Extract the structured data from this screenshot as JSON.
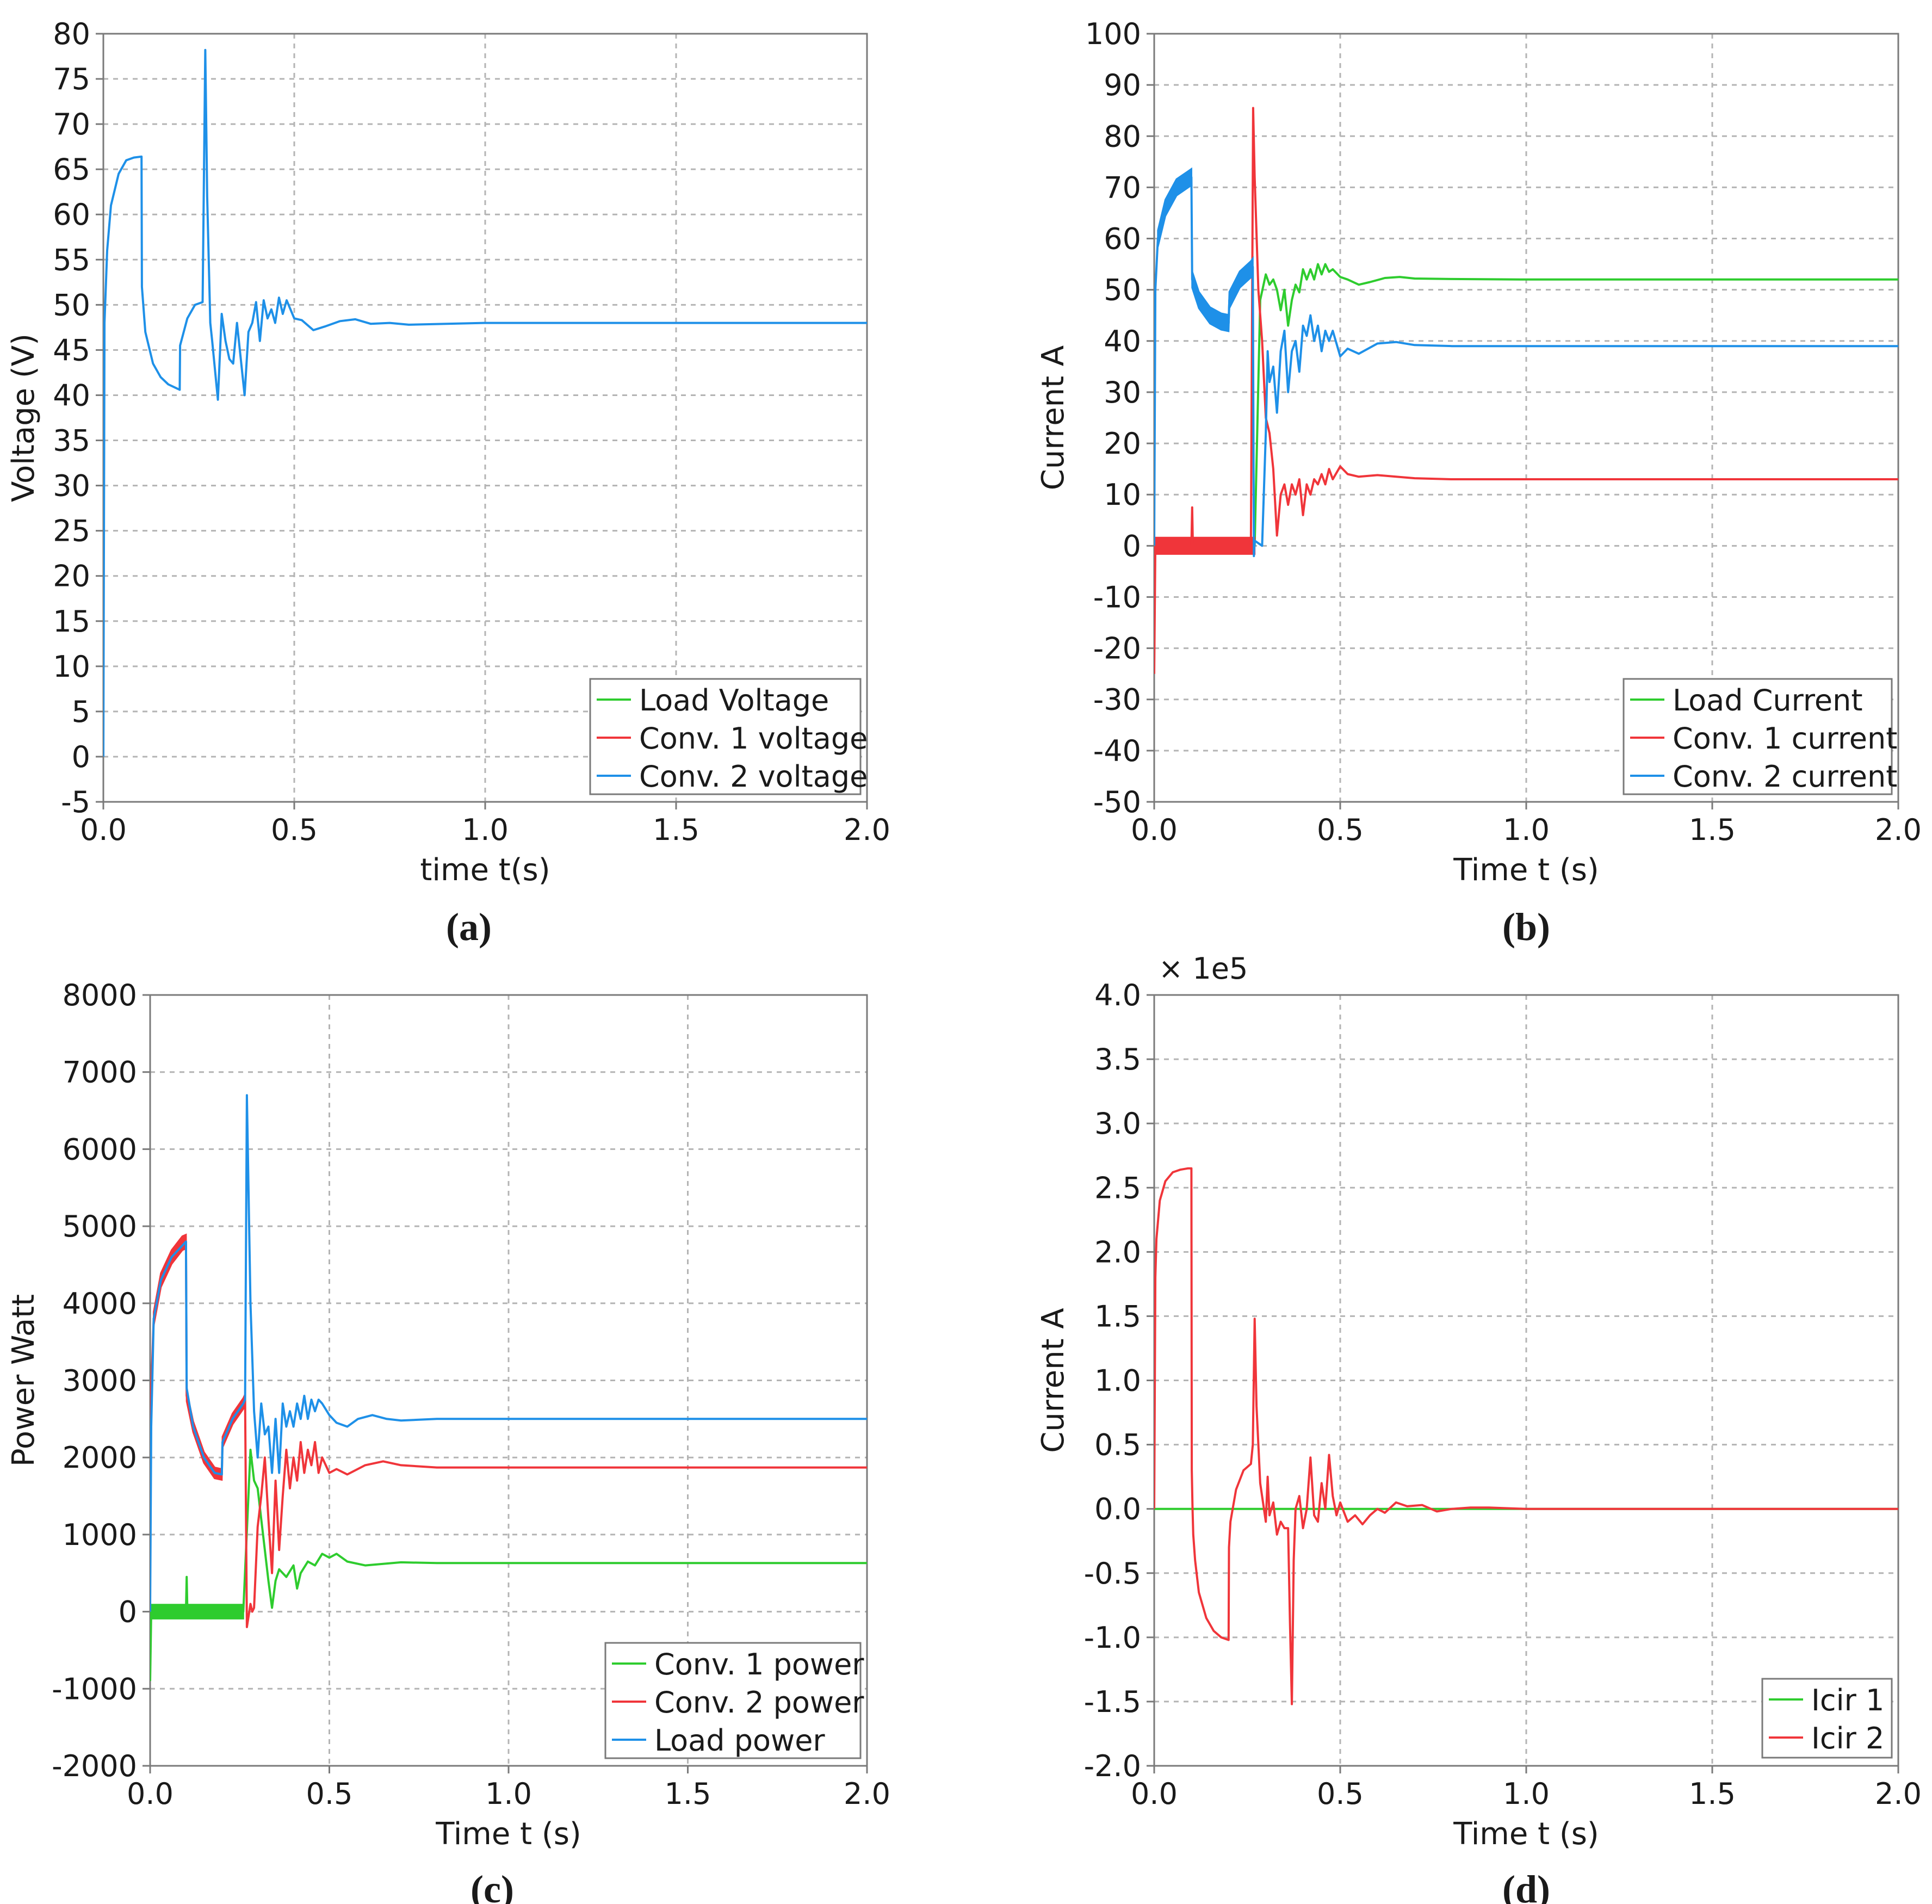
{
  "colors": {
    "green": "#2ecc2e",
    "red": "#f0353a",
    "blue": "#1e90e8",
    "grid": "#b4b4b4",
    "frame": "#7a7a7a"
  },
  "chart_data": [
    {
      "panel": "(a)",
      "type": "line",
      "xlabel": "time t(s)",
      "ylabel": "Voltage (V)",
      "xlim": [
        0,
        2.0
      ],
      "ylim": [
        -5,
        80
      ],
      "xticks": [
        0.0,
        0.5,
        1.0,
        1.5,
        2.0
      ],
      "xtick_labels": [
        "0.0",
        "0.5",
        "1.0",
        "1.5",
        "2.0"
      ],
      "yticks": [
        -5,
        0,
        5,
        10,
        15,
        20,
        25,
        30,
        35,
        40,
        45,
        50,
        55,
        60,
        65,
        70,
        75,
        80
      ],
      "ytick_labels": [
        "-5",
        "0",
        "5",
        "10",
        "15",
        "20",
        "25",
        "30",
        "35",
        "40",
        "45",
        "50",
        "55",
        "60",
        "65",
        "70",
        "75",
        "80"
      ],
      "legend": [
        "Load Voltage",
        "Conv. 1 voltage",
        "Conv. 2 voltage"
      ],
      "series": [
        {
          "name": "Conv. 2 voltage",
          "color": "blue",
          "x": [
            0.0,
            0.003,
            0.01,
            0.02,
            0.04,
            0.06,
            0.08,
            0.1,
            0.101,
            0.11,
            0.13,
            0.15,
            0.17,
            0.19,
            0.2,
            0.201,
            0.22,
            0.24,
            0.26,
            0.267,
            0.272,
            0.28,
            0.285,
            0.3,
            0.31,
            0.32,
            0.33,
            0.34,
            0.35,
            0.36,
            0.37,
            0.38,
            0.39,
            0.4,
            0.41,
            0.42,
            0.43,
            0.44,
            0.45,
            0.46,
            0.47,
            0.48,
            0.5,
            0.52,
            0.55,
            0.58,
            0.62,
            0.66,
            0.7,
            0.75,
            0.8,
            1.0,
            1.5,
            2.0
          ],
          "y": [
            0,
            48,
            56,
            61,
            64.5,
            66,
            66.3,
            66.4,
            52,
            47,
            43.5,
            42,
            41.2,
            40.8,
            40.6,
            45.5,
            48.5,
            50,
            50.3,
            78.2,
            62,
            48,
            46,
            39.5,
            49,
            46,
            44,
            43.5,
            48,
            44,
            40,
            47,
            48,
            50.3,
            46,
            50.5,
            48.5,
            49.5,
            48,
            50.8,
            49,
            50.5,
            48.5,
            48.3,
            47.2,
            47.6,
            48.2,
            48.4,
            47.9,
            48.0,
            47.8,
            48.0,
            48.0,
            48.0
          ]
        }
      ]
    },
    {
      "panel": "(b)",
      "type": "line",
      "xlabel": "Time t (s)",
      "ylabel": "Current A",
      "xlim": [
        0,
        2.0
      ],
      "ylim": [
        -50,
        100
      ],
      "xticks": [
        0.0,
        0.5,
        1.0,
        1.5,
        2.0
      ],
      "xtick_labels": [
        "0.0",
        "0.5",
        "1.0",
        "1.5",
        "2.0"
      ],
      "yticks": [
        -50,
        -40,
        -30,
        -20,
        -10,
        0,
        10,
        20,
        30,
        40,
        50,
        60,
        70,
        80,
        90,
        100
      ],
      "ytick_labels": [
        "-50",
        "-40",
        "-30",
        "-20",
        "-10",
        "0",
        "10",
        "20",
        "30",
        "40",
        "50",
        "60",
        "70",
        "80",
        "90",
        "100"
      ],
      "legend": [
        "Load Current",
        "Conv. 1 current",
        "Conv. 2 current"
      ],
      "series": [
        {
          "name": "Load Current",
          "color": "green",
          "x": [
            0.0,
            0.27,
            0.285,
            0.3,
            0.31,
            0.32,
            0.33,
            0.34,
            0.35,
            0.36,
            0.37,
            0.38,
            0.39,
            0.4,
            0.41,
            0.42,
            0.43,
            0.44,
            0.45,
            0.46,
            0.47,
            0.48,
            0.5,
            0.52,
            0.55,
            0.58,
            0.62,
            0.66,
            0.7,
            0.8,
            1.0,
            2.0
          ],
          "y": [
            0,
            0,
            48,
            53,
            51,
            52,
            50,
            46,
            50,
            43,
            48,
            51,
            49.5,
            54,
            52,
            54,
            52,
            55,
            53,
            55,
            53.5,
            54,
            52.5,
            52,
            51,
            51.5,
            52.3,
            52.5,
            52.2,
            52.1,
            52.0,
            52.0
          ]
        },
        {
          "name": "Conv. 1 current",
          "color": "red",
          "x": [
            0.0,
            0.003,
            0.02,
            0.1,
            0.102,
            0.104,
            0.2,
            0.26,
            0.266,
            0.27,
            0.28,
            0.29,
            0.3,
            0.31,
            0.32,
            0.33,
            0.34,
            0.35,
            0.36,
            0.37,
            0.38,
            0.39,
            0.4,
            0.41,
            0.42,
            0.43,
            0.44,
            0.45,
            0.46,
            0.47,
            0.48,
            0.5,
            0.52,
            0.55,
            0.6,
            0.7,
            0.8,
            1.0,
            2.0
          ],
          "y": [
            -25,
            0,
            0,
            0,
            7.5,
            0,
            0,
            0,
            85.5,
            72,
            50,
            40,
            25,
            22,
            15,
            2,
            10,
            12,
            8,
            12,
            10,
            13,
            6,
            12,
            10,
            13,
            12,
            14,
            12,
            15,
            13,
            15.5,
            14,
            13.5,
            13.8,
            13.2,
            13.0,
            13.0,
            13.0
          ],
          "band": {
            "x0": 0.003,
            "x1": 0.27,
            "center": 0,
            "half": 1.6
          }
        },
        {
          "name": "Conv. 2 current",
          "color": "blue",
          "x": [
            0.0,
            0.003,
            0.01,
            0.03,
            0.06,
            0.09,
            0.1,
            0.102,
            0.12,
            0.15,
            0.18,
            0.2,
            0.202,
            0.23,
            0.26,
            0.265,
            0.268,
            0.27,
            0.29,
            0.3,
            0.305,
            0.31,
            0.32,
            0.33,
            0.34,
            0.35,
            0.36,
            0.37,
            0.38,
            0.39,
            0.4,
            0.41,
            0.42,
            0.43,
            0.44,
            0.45,
            0.46,
            0.47,
            0.48,
            0.5,
            0.52,
            0.55,
            0.6,
            0.65,
            0.7,
            0.8,
            1.0,
            2.0
          ],
          "y": [
            0,
            50,
            60,
            66,
            70,
            71.5,
            72,
            52,
            48,
            45,
            43.8,
            43.5,
            48,
            52,
            54,
            54.5,
            -2,
            1,
            0,
            22,
            38,
            32,
            35,
            26,
            38,
            42,
            30,
            38,
            40,
            34,
            43,
            41,
            45,
            40,
            43,
            38,
            42,
            40,
            42,
            37,
            38.5,
            37.5,
            39.5,
            39.8,
            39.2,
            39.0,
            39.0,
            39.0
          ],
          "bands": [
            {
              "x0": 0.005,
              "x1": 0.1,
              "from": [
                50,
                60,
                66,
                70,
                71.5,
                72
              ],
              "half": 1.6
            },
            {
              "x0": 0.1,
              "x1": 0.265,
              "half": 1.6
            }
          ]
        }
      ]
    },
    {
      "panel": "(c)",
      "type": "line",
      "xlabel": "Time t (s)",
      "ylabel": "Power Watt",
      "xlim": [
        0,
        2.0
      ],
      "ylim": [
        -2000,
        8000
      ],
      "xticks": [
        0.0,
        0.5,
        1.0,
        1.5,
        2.0
      ],
      "xtick_labels": [
        "0.0",
        "0.5",
        "1.0",
        "1.5",
        "2.0"
      ],
      "yticks": [
        -2000,
        -1000,
        0,
        1000,
        2000,
        3000,
        4000,
        5000,
        6000,
        7000,
        8000
      ],
      "ytick_labels": [
        "-2000",
        "-1000",
        "0",
        "1000",
        "2000",
        "3000",
        "4000",
        "5000",
        "6000",
        "7000",
        "8000"
      ],
      "legend": [
        "Conv. 1 power",
        "Conv. 2 power",
        "Load power"
      ],
      "series": [
        {
          "name": "Conv. 1 power",
          "color": "green",
          "x": [
            0.0,
            0.003,
            0.02,
            0.1,
            0.102,
            0.104,
            0.26,
            0.28,
            0.29,
            0.3,
            0.31,
            0.32,
            0.33,
            0.34,
            0.35,
            0.36,
            0.38,
            0.4,
            0.41,
            0.42,
            0.44,
            0.46,
            0.48,
            0.5,
            0.52,
            0.55,
            0.6,
            0.7,
            0.8,
            1.0,
            2.0
          ],
          "y": [
            -900,
            0,
            0,
            0,
            450,
            0,
            0,
            2100,
            1700,
            1600,
            1200,
            800,
            400,
            50,
            400,
            550,
            450,
            600,
            300,
            500,
            650,
            600,
            750,
            700,
            750,
            650,
            600,
            640,
            630,
            630,
            630
          ],
          "band": {
            "x0": 0.003,
            "x1": 0.26,
            "center": 0,
            "half": 90
          }
        },
        {
          "name": "Conv. 2 power",
          "color": "red",
          "x": [
            0.0,
            0.01,
            0.03,
            0.06,
            0.09,
            0.1,
            0.102,
            0.12,
            0.15,
            0.18,
            0.2,
            0.202,
            0.23,
            0.26,
            0.265,
            0.27,
            0.28,
            0.285,
            0.29,
            0.3,
            0.31,
            0.32,
            0.33,
            0.34,
            0.35,
            0.36,
            0.37,
            0.38,
            0.39,
            0.4,
            0.41,
            0.42,
            0.43,
            0.44,
            0.45,
            0.46,
            0.47,
            0.48,
            0.5,
            0.52,
            0.55,
            0.6,
            0.65,
            0.7,
            0.8,
            1.0,
            2.0
          ],
          "y": [
            2500,
            3800,
            4300,
            4600,
            4780,
            4800,
            2800,
            2400,
            2000,
            1800,
            1780,
            2200,
            2500,
            2700,
            2750,
            -200,
            100,
            0,
            50,
            1100,
            1500,
            2000,
            1200,
            500,
            1700,
            800,
            1500,
            2100,
            1600,
            2000,
            1700,
            2200,
            1800,
            2100,
            1900,
            2200,
            1800,
            2000,
            1800,
            1850,
            1780,
            1900,
            1950,
            1900,
            1870,
            1870,
            1870
          ],
          "bands": [
            {
              "x0": 0.005,
              "x1": 0.1,
              "half": 90
            },
            {
              "x0": 0.1,
              "x1": 0.265,
              "half": 70
            }
          ]
        },
        {
          "name": "Load power",
          "color": "blue",
          "x": [
            0.0,
            0.003,
            0.01,
            0.03,
            0.06,
            0.09,
            0.1,
            0.102,
            0.12,
            0.15,
            0.18,
            0.2,
            0.202,
            0.23,
            0.26,
            0.265,
            0.27,
            0.28,
            0.29,
            0.3,
            0.31,
            0.32,
            0.33,
            0.34,
            0.35,
            0.36,
            0.37,
            0.38,
            0.39,
            0.4,
            0.41,
            0.42,
            0.43,
            0.44,
            0.45,
            0.46,
            0.47,
            0.48,
            0.5,
            0.52,
            0.55,
            0.58,
            0.62,
            0.66,
            0.7,
            0.8,
            1.0,
            2.0
          ],
          "y": [
            0,
            2400,
            3800,
            4300,
            4600,
            4750,
            4800,
            2900,
            2400,
            2000,
            1800,
            1780,
            2200,
            2500,
            2700,
            2750,
            6700,
            4000,
            2600,
            2000,
            2700,
            2300,
            2400,
            1800,
            2500,
            1800,
            2700,
            2400,
            2600,
            2400,
            2700,
            2500,
            2800,
            2500,
            2750,
            2600,
            2750,
            2700,
            2550,
            2450,
            2400,
            2500,
            2550,
            2500,
            2480,
            2500,
            2500,
            2500
          ]
        }
      ]
    },
    {
      "panel": "(d)",
      "type": "line",
      "xlabel": "Time t (s)",
      "ylabel": "Current A",
      "multiplier": "× 1e5",
      "xlim": [
        0,
        2.0
      ],
      "ylim": [
        -2.0,
        4.0
      ],
      "xticks": [
        0.0,
        0.5,
        1.0,
        1.5,
        2.0
      ],
      "xtick_labels": [
        "0.0",
        "0.5",
        "1.0",
        "1.5",
        "2.0"
      ],
      "yticks": [
        -2.0,
        -1.5,
        -1.0,
        -0.5,
        0.0,
        0.5,
        1.0,
        1.5,
        2.0,
        2.5,
        3.0,
        3.5,
        4.0
      ],
      "ytick_labels": [
        "-2.0",
        "-1.5",
        "-1.0",
        "-0.5",
        "0.0",
        "0.5",
        "1.0",
        "1.5",
        "2.0",
        "2.5",
        "3.0",
        "3.5",
        "4.0"
      ],
      "legend": [
        "Icir 1",
        "Icir 2"
      ],
      "series": [
        {
          "name": "Icir 1",
          "color": "green",
          "x": [
            0.0,
            2.0
          ],
          "y": [
            0.0,
            0.0
          ]
        },
        {
          "name": "Icir 2",
          "color": "red",
          "x": [
            0.0,
            0.003,
            0.006,
            0.015,
            0.03,
            0.05,
            0.07,
            0.09,
            0.1,
            0.101,
            0.103,
            0.105,
            0.11,
            0.12,
            0.14,
            0.16,
            0.18,
            0.2,
            0.201,
            0.205,
            0.22,
            0.24,
            0.26,
            0.265,
            0.27,
            0.275,
            0.285,
            0.3,
            0.305,
            0.31,
            0.32,
            0.33,
            0.34,
            0.35,
            0.36,
            0.365,
            0.37,
            0.375,
            0.38,
            0.39,
            0.4,
            0.41,
            0.42,
            0.43,
            0.44,
            0.45,
            0.46,
            0.47,
            0.48,
            0.49,
            0.5,
            0.52,
            0.54,
            0.56,
            0.58,
            0.6,
            0.62,
            0.65,
            0.68,
            0.72,
            0.76,
            0.8,
            0.85,
            0.9,
            1.0,
            2.0
          ],
          "y": [
            0.0,
            1.8,
            2.1,
            2.4,
            2.55,
            2.62,
            2.64,
            2.65,
            2.65,
            0.3,
            0.0,
            -0.2,
            -0.4,
            -0.65,
            -0.85,
            -0.95,
            -1.0,
            -1.02,
            -0.3,
            -0.1,
            0.15,
            0.3,
            0.35,
            0.5,
            1.48,
            0.8,
            0.2,
            -0.1,
            0.25,
            -0.05,
            0.05,
            -0.2,
            -0.1,
            -0.15,
            -0.15,
            -0.9,
            -1.52,
            -0.4,
            0.0,
            0.1,
            -0.15,
            0.0,
            0.4,
            -0.05,
            -0.1,
            0.2,
            0.0,
            0.42,
            0.1,
            -0.05,
            0.05,
            -0.1,
            -0.05,
            -0.12,
            -0.05,
            0.0,
            -0.03,
            0.05,
            0.02,
            0.03,
            -0.02,
            0.0,
            0.01,
            0.01,
            0.0,
            0.0
          ]
        }
      ]
    }
  ]
}
